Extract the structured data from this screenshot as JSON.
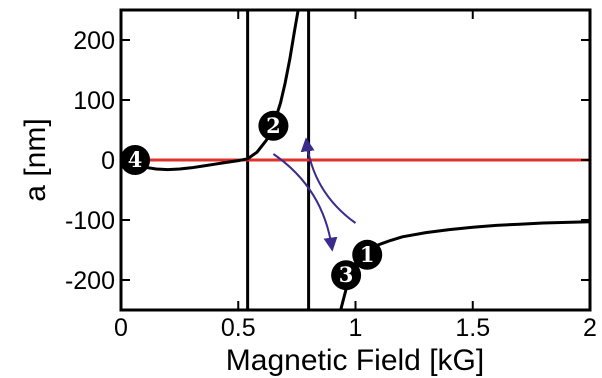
{
  "chart_data": {
    "type": "line",
    "title": "",
    "xlabel": "Magnetic Field [kG]",
    "ylabel": "a [nm]",
    "xlim": [
      0,
      2
    ],
    "ylim": [
      -250,
      250
    ],
    "x_ticks": [
      0,
      0.5,
      1,
      1.5,
      2
    ],
    "x_tick_labels": [
      "0",
      "0.5",
      "1",
      "1.5",
      "2"
    ],
    "y_ticks": [
      -200,
      -100,
      0,
      100,
      200
    ],
    "y_tick_labels": [
      "-200",
      "-100",
      "0",
      "100",
      "200"
    ],
    "grid": false,
    "legend": "none",
    "colors": {
      "curve": "#000000",
      "zero_line": "#e0312d",
      "arrow": "#3b2b8c",
      "marker_fill": "#000000",
      "marker_text": "#ffffff"
    },
    "vertical_lines": [
      0.54,
      0.8
    ],
    "zero_line": {
      "y": 0,
      "x_range": [
        0,
        2
      ]
    },
    "series": [
      {
        "x": [
          0.0,
          0.05,
          0.1,
          0.15,
          0.2,
          0.25,
          0.3,
          0.35,
          0.4,
          0.45,
          0.5,
          0.54,
          0.58,
          0.62,
          0.65,
          0.68,
          0.7,
          0.72,
          0.74,
          0.76
        ],
        "y": [
          0,
          -7,
          -12,
          -15,
          -16,
          -15,
          -13,
          -10,
          -7,
          -4,
          -1,
          2,
          13,
          33,
          58,
          95,
          128,
          168,
          215,
          260
        ]
      },
      {
        "x": [
          0.93,
          0.95,
          0.97,
          1.0,
          1.03,
          1.06,
          1.1,
          1.15,
          1.2,
          1.3,
          1.4,
          1.5,
          1.6,
          1.7,
          1.8,
          1.9,
          2.0
        ],
        "y": [
          -260,
          -230,
          -200,
          -172,
          -157,
          -149,
          -141,
          -134,
          -128,
          -121,
          -116,
          -112,
          -109,
          -107,
          -105,
          -104,
          -103
        ]
      }
    ],
    "markers": [
      {
        "label": "1",
        "x": 1.05,
        "y": -158
      },
      {
        "label": "2",
        "x": 0.65,
        "y": 57
      },
      {
        "label": "3",
        "x": 0.96,
        "y": -192
      },
      {
        "label": "4",
        "x": 0.06,
        "y": 0
      }
    ],
    "arrows": [
      {
        "from": [
          1.0,
          -105
        ],
        "to": [
          0.79,
          33
        ]
      },
      {
        "from": [
          0.65,
          10
        ],
        "to": [
          0.9,
          -148
        ]
      }
    ]
  }
}
